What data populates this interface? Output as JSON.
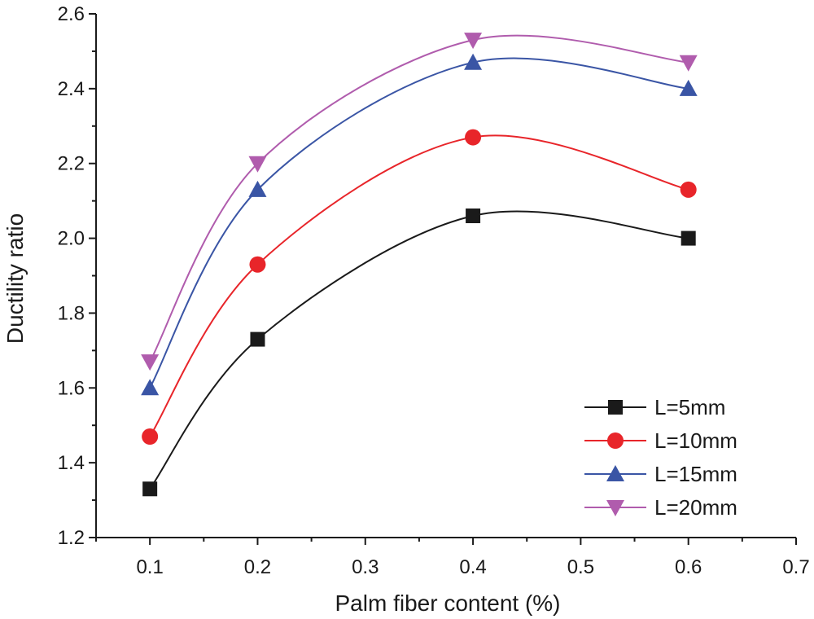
{
  "chart_data": {
    "type": "line",
    "title": "",
    "xlabel": "Palm fiber content (%)",
    "ylabel": "Ductility ratio",
    "xlim": [
      0.05,
      0.7
    ],
    "ylim": [
      1.2,
      2.6
    ],
    "xticks": [
      0.1,
      0.2,
      0.3,
      0.4,
      0.5,
      0.6,
      0.7
    ],
    "xtick_labels": [
      "0.1",
      "0.2",
      "0.3",
      "0.4",
      "0.5",
      "0.6",
      "0.7"
    ],
    "yticks": [
      1.2,
      1.4,
      1.6,
      1.8,
      2.0,
      2.2,
      2.4,
      2.6
    ],
    "ytick_labels": [
      "1.2",
      "1.4",
      "1.6",
      "1.8",
      "2.0",
      "2.2",
      "2.4",
      "2.6"
    ],
    "grid": false,
    "legend_position": "bottom-right",
    "x": [
      0.1,
      0.2,
      0.4,
      0.6
    ],
    "series": [
      {
        "name": "L=5mm",
        "values": [
          1.33,
          1.73,
          2.06,
          2.0
        ],
        "color": "#1a1a1a",
        "marker": "square"
      },
      {
        "name": "L=10mm",
        "values": [
          1.47,
          1.93,
          2.27,
          2.13
        ],
        "color": "#e8252a",
        "marker": "circle"
      },
      {
        "name": "L=15mm",
        "values": [
          1.6,
          2.13,
          2.47,
          2.4
        ],
        "color": "#3a55a5",
        "marker": "triangle-up"
      },
      {
        "name": "L=20mm",
        "values": [
          1.67,
          2.2,
          2.53,
          2.47
        ],
        "color": "#b05cad",
        "marker": "triangle-down"
      }
    ]
  }
}
